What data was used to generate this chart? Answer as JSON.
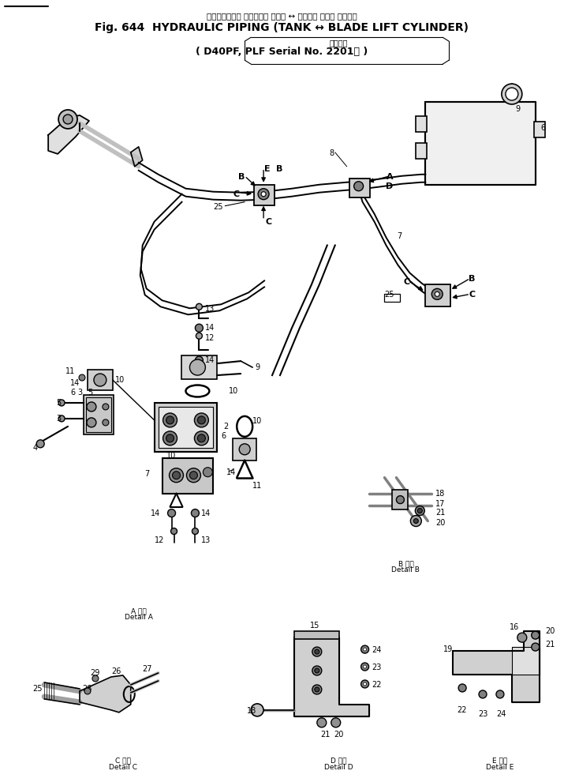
{
  "bg_color": "#ffffff",
  "fig_width": 7.15,
  "fig_height": 9.9,
  "dpi": 100,
  "title_japanese": "ハイドロリック パイピング タンク ↔ ブレード リフト シリンダ",
  "title_english": "Fig. 644  HYDRAULIC PIPING (TANK ↔ BLADE LIFT CYLINDER)",
  "subtitle_japanese": "適用号機",
  "subtitle_model": "( D40PF, PLF Serial No. 2201～ )",
  "lc": "#000000",
  "lw": 0.8
}
